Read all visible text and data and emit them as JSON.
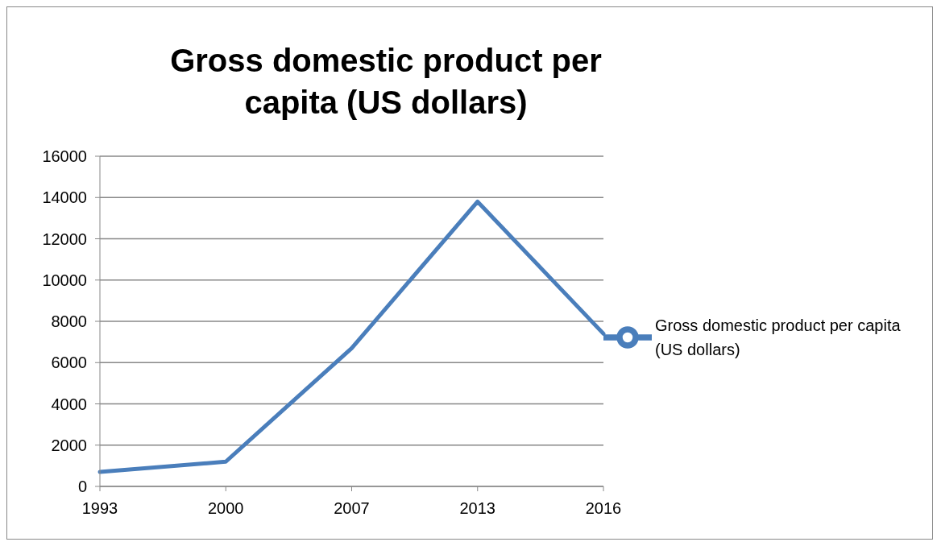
{
  "chart_data": {
    "type": "line",
    "title": "Gross domestic product per capita (US dollars)",
    "categories": [
      "1993",
      "2000",
      "2007",
      "2013",
      "2016"
    ],
    "series": [
      {
        "name": "Gross domestic product per capita (US dollars)",
        "color": "#4a7ebb",
        "values": [
          700,
          1200,
          6700,
          13800,
          7400
        ]
      }
    ],
    "ylim": [
      0,
      16000
    ],
    "yticks": [
      0,
      2000,
      4000,
      6000,
      8000,
      10000,
      12000,
      14000,
      16000
    ],
    "grid": "y",
    "legend": "right",
    "marker": "none",
    "line_style": "solid"
  }
}
